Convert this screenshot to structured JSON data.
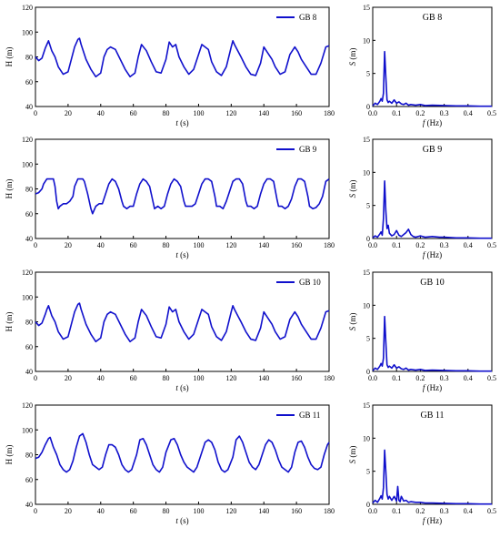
{
  "colors": {
    "series": "#1010cc",
    "axis": "#000000"
  },
  "chart_data": [
    {
      "type": "line",
      "kind": "time",
      "legend": "GB 8",
      "xlabel_italic": "t",
      "xlabel_rest": " (s)",
      "ylabel": "H (m)",
      "xlim": [
        0,
        180
      ],
      "ylim": [
        40,
        120
      ],
      "xticks": [
        0,
        20,
        40,
        60,
        80,
        100,
        120,
        140,
        160,
        180
      ],
      "yticks": [
        40,
        60,
        80,
        100,
        120
      ],
      "x": [
        0,
        2,
        4,
        6,
        7,
        8,
        10,
        12,
        14,
        17,
        20,
        22,
        24,
        26,
        27,
        28,
        31,
        34,
        37,
        40,
        42,
        44,
        46,
        49,
        52,
        55,
        58,
        61,
        63,
        65,
        68,
        71,
        74,
        77,
        80,
        82,
        84,
        86,
        88,
        91,
        94,
        97,
        100,
        102,
        104,
        106,
        108,
        111,
        114,
        117,
        120,
        121,
        122,
        124,
        126,
        129,
        132,
        135,
        138,
        140,
        142,
        145,
        147,
        150,
        153,
        156,
        159,
        161,
        163,
        166,
        169,
        172,
        175,
        178,
        180
      ],
      "y": [
        80,
        77,
        79,
        87,
        90,
        93,
        85,
        80,
        72,
        66,
        68,
        78,
        88,
        94,
        95,
        90,
        78,
        70,
        64,
        67,
        80,
        86,
        88,
        86,
        78,
        70,
        64,
        67,
        80,
        90,
        85,
        76,
        68,
        67,
        78,
        92,
        88,
        90,
        80,
        72,
        66,
        70,
        82,
        90,
        88,
        86,
        76,
        68,
        65,
        72,
        88,
        93,
        90,
        85,
        80,
        72,
        66,
        65,
        75,
        88,
        84,
        78,
        72,
        66,
        68,
        82,
        88,
        84,
        78,
        72,
        66,
        66,
        75,
        88,
        89
      ]
    },
    {
      "type": "line",
      "kind": "spectrum",
      "label": "GB 8",
      "xlabel_italic": "f",
      "xlabel_rest": " (Hz)",
      "ylabel_italic": "S",
      "ylabel_rest": " (m)",
      "xlim": [
        0,
        0.5
      ],
      "ylim": [
        0,
        15
      ],
      "xticks": [
        0.0,
        0.1,
        0.2,
        0.3,
        0.4,
        0.5
      ],
      "yticks": [
        0,
        5,
        10,
        15
      ],
      "x": [
        0,
        0.01,
        0.02,
        0.03,
        0.035,
        0.04,
        0.045,
        0.05,
        0.055,
        0.06,
        0.065,
        0.07,
        0.08,
        0.09,
        0.1,
        0.11,
        0.12,
        0.13,
        0.14,
        0.15,
        0.16,
        0.18,
        0.2,
        0.22,
        0.25,
        0.3,
        0.35,
        0.4,
        0.45,
        0.5
      ],
      "y": [
        0.1,
        0.5,
        0.3,
        0.8,
        1.2,
        0.8,
        2.0,
        8.3,
        4.5,
        1.0,
        0.6,
        0.8,
        0.5,
        1.0,
        0.5,
        0.7,
        0.4,
        0.3,
        0.5,
        0.2,
        0.3,
        0.2,
        0.3,
        0.15,
        0.2,
        0.15,
        0.1,
        0.1,
        0.05,
        0.05
      ]
    },
    {
      "type": "line",
      "kind": "time",
      "legend": "GB 9",
      "xlabel_italic": "t",
      "xlabel_rest": " (s)",
      "ylabel": "H (m)",
      "xlim": [
        0,
        180
      ],
      "ylim": [
        40,
        120
      ],
      "xticks": [
        0,
        20,
        40,
        60,
        80,
        100,
        120,
        140,
        160,
        180
      ],
      "yticks": [
        40,
        60,
        80,
        100,
        120
      ],
      "x": [
        0,
        2,
        4,
        5,
        7,
        9,
        11,
        12,
        13,
        14,
        15,
        17,
        19,
        21,
        23,
        24,
        26,
        27,
        29,
        30,
        32,
        34,
        35,
        37,
        39,
        41,
        43,
        45,
        47,
        49,
        51,
        53,
        54,
        56,
        58,
        60,
        62,
        64,
        66,
        68,
        70,
        72,
        73,
        75,
        77,
        79,
        81,
        83,
        85,
        87,
        89,
        91,
        92,
        94,
        96,
        98,
        100,
        102,
        104,
        106,
        108,
        110,
        111,
        113,
        115,
        117,
        119,
        121,
        123,
        125,
        127,
        129,
        130,
        132,
        134,
        136,
        138,
        140,
        142,
        144,
        146,
        148,
        149,
        151,
        153,
        155,
        157,
        159,
        161,
        163,
        165,
        167,
        168,
        170,
        172,
        174,
        176,
        178,
        180
      ],
      "y": [
        76,
        77,
        80,
        84,
        88,
        88,
        88,
        82,
        70,
        64,
        66,
        68,
        68,
        70,
        74,
        82,
        88,
        88,
        88,
        86,
        76,
        64,
        60,
        66,
        68,
        68,
        76,
        84,
        88,
        86,
        80,
        70,
        66,
        64,
        66,
        66,
        76,
        84,
        88,
        86,
        82,
        70,
        64,
        66,
        64,
        66,
        76,
        84,
        88,
        86,
        82,
        70,
        66,
        66,
        66,
        68,
        76,
        84,
        88,
        88,
        86,
        74,
        66,
        66,
        64,
        70,
        78,
        86,
        88,
        88,
        84,
        70,
        66,
        66,
        64,
        66,
        76,
        84,
        88,
        88,
        86,
        72,
        66,
        66,
        64,
        66,
        72,
        82,
        88,
        88,
        86,
        74,
        66,
        64,
        65,
        68,
        74,
        86,
        88
      ]
    },
    {
      "type": "line",
      "kind": "spectrum",
      "label": "GB 9",
      "xlabel_italic": "f",
      "xlabel_rest": " (Hz)",
      "ylabel_italic": "S",
      "ylabel_rest": " (m)",
      "xlim": [
        0,
        0.5
      ],
      "ylim": [
        0,
        15
      ],
      "xticks": [
        0.0,
        0.1,
        0.2,
        0.3,
        0.4,
        0.5
      ],
      "yticks": [
        0,
        5,
        10,
        15
      ],
      "x": [
        0,
        0.01,
        0.02,
        0.03,
        0.035,
        0.04,
        0.045,
        0.05,
        0.055,
        0.06,
        0.065,
        0.07,
        0.08,
        0.09,
        0.1,
        0.11,
        0.12,
        0.13,
        0.14,
        0.15,
        0.16,
        0.17,
        0.18,
        0.2,
        0.22,
        0.25,
        0.28,
        0.3,
        0.35,
        0.4,
        0.45,
        0.5
      ],
      "y": [
        0.1,
        0.4,
        0.2,
        0.7,
        1.0,
        0.5,
        3.0,
        8.7,
        4.2,
        1.5,
        2.0,
        0.8,
        0.4,
        0.6,
        1.2,
        0.5,
        0.3,
        0.6,
        0.9,
        1.4,
        0.6,
        0.3,
        0.2,
        0.4,
        0.2,
        0.3,
        0.2,
        0.2,
        0.1,
        0.1,
        0.05,
        0.05
      ]
    },
    {
      "type": "line",
      "kind": "time",
      "legend": "GB 10",
      "xlabel_italic": "t",
      "xlabel_rest": " (s)",
      "ylabel": "H (m)",
      "xlim": [
        0,
        180
      ],
      "ylim": [
        40,
        120
      ],
      "xticks": [
        0,
        20,
        40,
        60,
        80,
        100,
        120,
        140,
        160,
        180
      ],
      "yticks": [
        40,
        60,
        80,
        100,
        120
      ],
      "x": [
        0,
        2,
        4,
        6,
        7,
        8,
        10,
        12,
        14,
        17,
        20,
        22,
        24,
        26,
        27,
        28,
        31,
        34,
        37,
        40,
        42,
        44,
        46,
        49,
        52,
        55,
        58,
        61,
        63,
        65,
        68,
        71,
        74,
        77,
        80,
        82,
        84,
        86,
        88,
        91,
        94,
        97,
        100,
        102,
        104,
        106,
        108,
        111,
        114,
        117,
        120,
        121,
        122,
        124,
        126,
        129,
        132,
        135,
        138,
        140,
        142,
        145,
        147,
        150,
        153,
        156,
        159,
        161,
        163,
        166,
        169,
        172,
        175,
        178,
        180
      ],
      "y": [
        80,
        77,
        79,
        86,
        90,
        93,
        85,
        80,
        72,
        66,
        68,
        78,
        88,
        94,
        95,
        90,
        78,
        70,
        64,
        67,
        80,
        86,
        88,
        86,
        78,
        70,
        64,
        67,
        80,
        90,
        85,
        76,
        68,
        67,
        78,
        92,
        88,
        90,
        80,
        72,
        66,
        70,
        82,
        90,
        88,
        86,
        76,
        68,
        65,
        72,
        88,
        93,
        90,
        85,
        80,
        72,
        66,
        65,
        75,
        88,
        84,
        78,
        72,
        66,
        68,
        82,
        88,
        84,
        78,
        72,
        66,
        66,
        75,
        88,
        89
      ]
    },
    {
      "type": "line",
      "kind": "spectrum",
      "label": "GB 10",
      "xlabel_italic": "f",
      "xlabel_rest": " (Hz)",
      "ylabel_italic": "S",
      "ylabel_rest": " (m)",
      "xlim": [
        0,
        0.5
      ],
      "ylim": [
        0,
        15
      ],
      "xticks": [
        0.0,
        0.1,
        0.2,
        0.3,
        0.4,
        0.5
      ],
      "yticks": [
        0,
        5,
        10,
        15
      ],
      "x": [
        0,
        0.01,
        0.02,
        0.03,
        0.035,
        0.04,
        0.045,
        0.05,
        0.055,
        0.06,
        0.065,
        0.07,
        0.08,
        0.09,
        0.1,
        0.11,
        0.12,
        0.13,
        0.14,
        0.15,
        0.16,
        0.18,
        0.2,
        0.22,
        0.25,
        0.3,
        0.35,
        0.4,
        0.45,
        0.5
      ],
      "y": [
        0.1,
        0.5,
        0.3,
        0.8,
        1.2,
        0.8,
        2.0,
        8.3,
        4.5,
        1.0,
        0.6,
        0.8,
        0.5,
        1.0,
        0.5,
        0.7,
        0.4,
        0.3,
        0.5,
        0.2,
        0.3,
        0.2,
        0.3,
        0.15,
        0.2,
        0.15,
        0.1,
        0.1,
        0.05,
        0.05
      ]
    },
    {
      "type": "line",
      "kind": "time",
      "legend": "GB 11",
      "xlabel_italic": "t",
      "xlabel_rest": " (s)",
      "ylabel": "H (m)",
      "xlim": [
        0,
        180
      ],
      "ylim": [
        40,
        120
      ],
      "xticks": [
        0,
        20,
        40,
        60,
        80,
        100,
        120,
        140,
        160,
        180
      ],
      "yticks": [
        40,
        60,
        80,
        100,
        120
      ],
      "x": [
        0,
        2,
        4,
        6,
        8,
        9,
        11,
        13,
        15,
        17,
        19,
        21,
        23,
        25,
        27,
        29,
        31,
        33,
        35,
        37,
        39,
        41,
        43,
        45,
        47,
        49,
        51,
        53,
        55,
        57,
        59,
        62,
        64,
        66,
        68,
        70,
        72,
        74,
        76,
        78,
        80,
        83,
        85,
        87,
        89,
        91,
        93,
        95,
        97,
        99,
        102,
        104,
        106,
        108,
        110,
        112,
        114,
        116,
        118,
        121,
        123,
        125,
        127,
        129,
        131,
        133,
        135,
        137,
        139,
        141,
        143,
        145,
        147,
        149,
        151,
        153,
        155,
        157,
        159,
        161,
        163,
        165,
        167,
        169,
        171,
        173,
        175,
        177,
        179,
        180
      ],
      "y": [
        77,
        78,
        82,
        88,
        93,
        94,
        86,
        80,
        72,
        68,
        66,
        68,
        75,
        86,
        95,
        97,
        90,
        80,
        72,
        70,
        68,
        70,
        80,
        88,
        88,
        86,
        80,
        72,
        68,
        66,
        68,
        80,
        92,
        93,
        88,
        80,
        72,
        68,
        66,
        70,
        82,
        92,
        93,
        88,
        80,
        74,
        70,
        68,
        66,
        70,
        82,
        90,
        92,
        90,
        84,
        74,
        68,
        66,
        68,
        78,
        92,
        95,
        90,
        82,
        74,
        70,
        68,
        72,
        80,
        88,
        92,
        90,
        84,
        76,
        70,
        68,
        66,
        70,
        82,
        90,
        91,
        86,
        78,
        72,
        69,
        68,
        70,
        80,
        88,
        90
      ]
    },
    {
      "type": "line",
      "kind": "spectrum",
      "label": "GB 11",
      "xlabel_italic": "f",
      "xlabel_rest": " (Hz)",
      "ylabel_italic": "S",
      "ylabel_rest": " (m)",
      "xlim": [
        0,
        0.5
      ],
      "ylim": [
        0,
        15
      ],
      "xticks": [
        0.0,
        0.1,
        0.2,
        0.3,
        0.4,
        0.5
      ],
      "yticks": [
        0,
        5,
        10,
        15
      ],
      "x": [
        0,
        0.01,
        0.02,
        0.03,
        0.035,
        0.04,
        0.045,
        0.05,
        0.055,
        0.06,
        0.065,
        0.07,
        0.08,
        0.09,
        0.1,
        0.105,
        0.11,
        0.115,
        0.12,
        0.13,
        0.14,
        0.15,
        0.16,
        0.18,
        0.2,
        0.22,
        0.25,
        0.3,
        0.35,
        0.4,
        0.45,
        0.5
      ],
      "y": [
        0.2,
        0.6,
        0.3,
        0.9,
        1.3,
        0.8,
        2.5,
        8.2,
        5.0,
        1.5,
        0.8,
        1.2,
        0.6,
        1.2,
        0.5,
        2.7,
        0.6,
        0.4,
        1.2,
        0.5,
        0.6,
        0.3,
        0.4,
        0.3,
        0.3,
        0.2,
        0.2,
        0.15,
        0.1,
        0.1,
        0.05,
        0.05
      ]
    }
  ]
}
